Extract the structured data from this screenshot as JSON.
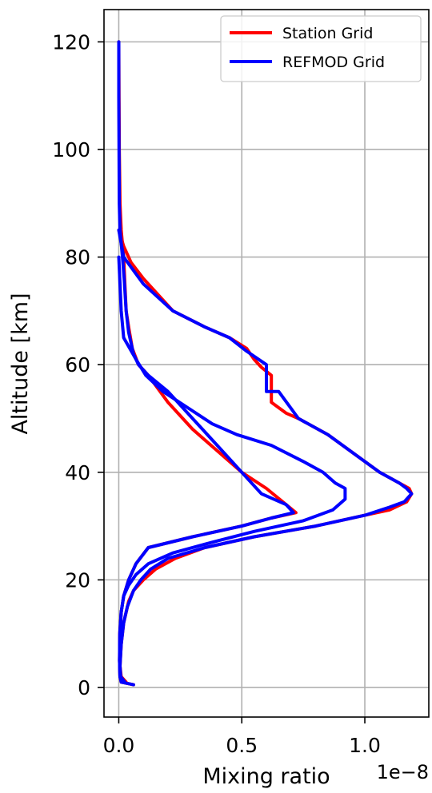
{
  "chart_data": {
    "type": "line",
    "title": "",
    "xlabel": "Mixing ratio",
    "ylabel": "Altitude [km]",
    "x_offset_text": "1e−8",
    "xlim": [
      -0.06,
      1.26
    ],
    "ylim": [
      -5.5,
      126
    ],
    "x_ticks": [
      0.0,
      0.5,
      1.0
    ],
    "x_tick_labels": [
      "0.0",
      "0.5",
      "1.0"
    ],
    "y_ticks": [
      0,
      20,
      40,
      60,
      80,
      100,
      120
    ],
    "y_tick_labels": [
      "0",
      "20",
      "40",
      "60",
      "80",
      "100",
      "120"
    ],
    "grid": true,
    "legend_position": "top-right",
    "series": [
      {
        "name": "Station Grid",
        "color": "#ff0000",
        "segments": [
          [
            [
              0.06,
              0.5
            ],
            [
              0.01,
              1
            ],
            [
              0.005,
              2
            ],
            [
              0.003,
              5
            ],
            [
              0.004,
              10
            ],
            [
              0.01,
              14
            ],
            [
              0.02,
              17
            ],
            [
              0.04,
              20
            ],
            [
              0.07,
              23
            ],
            [
              0.12,
              26
            ],
            [
              0.3,
              28
            ],
            [
              0.5,
              30
            ],
            [
              0.62,
              31.5
            ],
            [
              0.72,
              32.5
            ],
            [
              0.68,
              34
            ],
            [
              0.6,
              37
            ],
            [
              0.5,
              40
            ],
            [
              0.4,
              44
            ],
            [
              0.3,
              48
            ],
            [
              0.2,
              53
            ],
            [
              0.12,
              58
            ],
            [
              0.08,
              60
            ],
            [
              0.055,
              63
            ],
            [
              0.04,
              67
            ],
            [
              0.03,
              70
            ],
            [
              0.025,
              75
            ],
            [
              0.02,
              80
            ],
            [
              0.01,
              85
            ],
            [
              0.005,
              90
            ],
            [
              0.002,
              100
            ],
            [
              0.001,
              110
            ],
            [
              0.0,
              120
            ]
          ],
          [
            [
              0.0,
              85
            ],
            [
              0.02,
              82
            ],
            [
              0.05,
              79
            ],
            [
              0.1,
              76
            ],
            [
              0.22,
              70
            ],
            [
              0.35,
              67
            ],
            [
              0.45,
              65
            ],
            [
              0.52,
              63
            ],
            [
              0.55,
              61
            ],
            [
              0.58,
              59.5
            ],
            [
              0.62,
              58
            ],
            [
              0.62,
              56
            ],
            [
              0.62,
              53
            ],
            [
              0.68,
              51
            ],
            [
              0.73,
              50
            ],
            [
              0.85,
              47
            ],
            [
              0.97,
              43
            ],
            [
              1.06,
              40
            ],
            [
              1.14,
              38
            ],
            [
              1.18,
              37
            ],
            [
              1.19,
              36
            ],
            [
              1.17,
              34.5
            ],
            [
              1.1,
              33
            ],
            [
              1.0,
              32
            ],
            [
              0.8,
              30
            ],
            [
              0.55,
              28
            ],
            [
              0.35,
              26
            ],
            [
              0.23,
              24
            ],
            [
              0.15,
              22
            ],
            [
              0.1,
              20
            ],
            [
              0.06,
              18
            ],
            [
              0.04,
              16
            ],
            [
              0.02,
              12
            ],
            [
              0.01,
              8
            ],
            [
              0.005,
              4
            ],
            [
              0.01,
              2
            ],
            [
              0.03,
              1
            ]
          ]
        ]
      },
      {
        "name": "REFMOD Grid",
        "color": "#0000ff",
        "segments": [
          [
            [
              0.06,
              0.5
            ],
            [
              0.01,
              1
            ],
            [
              0.005,
              2
            ],
            [
              0.003,
              5
            ],
            [
              0.004,
              10
            ],
            [
              0.01,
              14
            ],
            [
              0.02,
              17
            ],
            [
              0.04,
              20
            ],
            [
              0.07,
              23
            ],
            [
              0.12,
              26
            ],
            [
              0.3,
              28
            ],
            [
              0.5,
              30
            ],
            [
              0.62,
              31.5
            ],
            [
              0.71,
              32.5
            ],
            [
              0.68,
              34
            ],
            [
              0.58,
              36
            ],
            [
              0.5,
              40
            ],
            [
              0.4,
              45
            ],
            [
              0.3,
              50
            ],
            [
              0.2,
              55
            ],
            [
              0.12,
              58
            ],
            [
              0.08,
              60
            ],
            [
              0.06,
              62
            ],
            [
              0.04,
              66
            ],
            [
              0.03,
              70
            ],
            [
              0.022,
              76
            ],
            [
              0.015,
              80
            ],
            [
              0.005,
              85
            ],
            [
              0.002,
              90
            ],
            [
              0.001,
              100
            ],
            [
              0.0,
              110
            ],
            [
              0.0,
              120
            ]
          ],
          [
            [
              0.0,
              85
            ],
            [
              0.02,
              80
            ],
            [
              0.1,
              75
            ],
            [
              0.22,
              70
            ],
            [
              0.35,
              67
            ],
            [
              0.45,
              65
            ],
            [
              0.52,
              62.5
            ],
            [
              0.6,
              60
            ],
            [
              0.6,
              57
            ],
            [
              0.6,
              55
            ],
            [
              0.65,
              55
            ],
            [
              0.73,
              50
            ],
            [
              0.85,
              47
            ],
            [
              0.97,
              43
            ],
            [
              1.06,
              40
            ],
            [
              1.14,
              38
            ],
            [
              1.17,
              37
            ],
            [
              1.19,
              36
            ],
            [
              1.16,
              34.5
            ],
            [
              1.1,
              33.5
            ],
            [
              1.0,
              32
            ],
            [
              0.8,
              30
            ],
            [
              0.55,
              28
            ],
            [
              0.35,
              26
            ],
            [
              0.2,
              24
            ],
            [
              0.13,
              22
            ],
            [
              0.09,
              20
            ],
            [
              0.06,
              18
            ],
            [
              0.035,
              15
            ],
            [
              0.02,
              12
            ],
            [
              0.01,
              8
            ],
            [
              0.005,
              4
            ],
            [
              0.008,
              2
            ],
            [
              0.025,
              1
            ]
          ],
          [
            [
              0.0,
              80
            ],
            [
              0.005,
              75
            ],
            [
              0.01,
              70
            ],
            [
              0.02,
              65
            ],
            [
              0.045,
              63
            ],
            [
              0.07,
              61
            ],
            [
              0.11,
              58
            ],
            [
              0.18,
              55
            ],
            [
              0.28,
              52
            ],
            [
              0.38,
              49
            ],
            [
              0.48,
              47
            ],
            [
              0.62,
              45
            ],
            [
              0.75,
              42
            ],
            [
              0.83,
              40
            ],
            [
              0.88,
              38
            ],
            [
              0.92,
              37
            ],
            [
              0.92,
              35
            ],
            [
              0.87,
              33
            ],
            [
              0.75,
              31
            ],
            [
              0.55,
              29
            ],
            [
              0.38,
              27
            ],
            [
              0.22,
              25
            ],
            [
              0.12,
              23
            ],
            [
              0.07,
              21
            ],
            [
              0.04,
              19
            ],
            [
              0.02,
              17
            ],
            [
              0.01,
              14
            ],
            [
              0.005,
              10
            ],
            [
              0.003,
              5
            ],
            [
              0.005,
              2
            ],
            [
              0.02,
              1
            ]
          ]
        ]
      }
    ]
  }
}
